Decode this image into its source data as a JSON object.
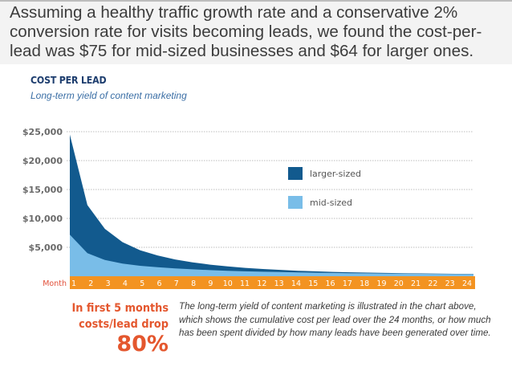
{
  "intro": {
    "text": "Assuming a healthy traffic growth rate and a conservative 2% conversion rate for visits becoming leads, we found the cost-per-lead was $75 for mid-sized businesses and $64 for larger ones."
  },
  "colors": {
    "larger": "#125a8e",
    "mid": "#79bde8",
    "axis_bar": "#f39321",
    "callout": "#e4572e",
    "title": "#1d3d6e",
    "subtitle": "#3a6ea5"
  },
  "chart_data": {
    "type": "area",
    "title": "COST PER LEAD",
    "subtitle": "Long-term yield of content marketing",
    "xlabel": "Month",
    "ylabel": "",
    "x": [
      1,
      2,
      3,
      4,
      5,
      6,
      7,
      8,
      9,
      10,
      11,
      12,
      13,
      14,
      15,
      16,
      17,
      18,
      19,
      20,
      21,
      22,
      23,
      24
    ],
    "x_tick_labels": [
      "1",
      "2",
      "3",
      "4",
      "5",
      "6",
      "7",
      "8",
      "9",
      "10",
      "11",
      "12",
      "13",
      "14",
      "15",
      "16",
      "17",
      "18",
      "19",
      "20",
      "21",
      "22",
      "23",
      "24"
    ],
    "y_ticks": [
      5000,
      10000,
      15000,
      20000,
      25000
    ],
    "y_tick_labels": [
      "$5,000",
      "$10,000",
      "$15,000",
      "$20,000",
      "$25,000"
    ],
    "ylim": [
      0,
      25000
    ],
    "grid": true,
    "legend_position": "center-right",
    "series": [
      {
        "name": "larger-sized",
        "values": [
          24500,
          12300,
          8200,
          5900,
          4500,
          3600,
          2900,
          2400,
          2000,
          1700,
          1450,
          1250,
          1100,
          950,
          850,
          750,
          680,
          620,
          570,
          520,
          480,
          450,
          420,
          400
        ]
      },
      {
        "name": "mid-sized",
        "values": [
          7200,
          4000,
          2800,
          2200,
          1800,
          1550,
          1350,
          1200,
          1050,
          950,
          850,
          780,
          720,
          660,
          610,
          570,
          530,
          500,
          470,
          440,
          420,
          400,
          380,
          360
        ]
      }
    ]
  },
  "callout": {
    "line1": "In first 5 months",
    "line2": "costs/lead drop",
    "value": "80%"
  },
  "description": "The long-term yield of content marketing is illustrated in the chart above, which shows the cumulative cost per lead over the 24 months, or how much has been spent divided by how many leads have been generated over time."
}
